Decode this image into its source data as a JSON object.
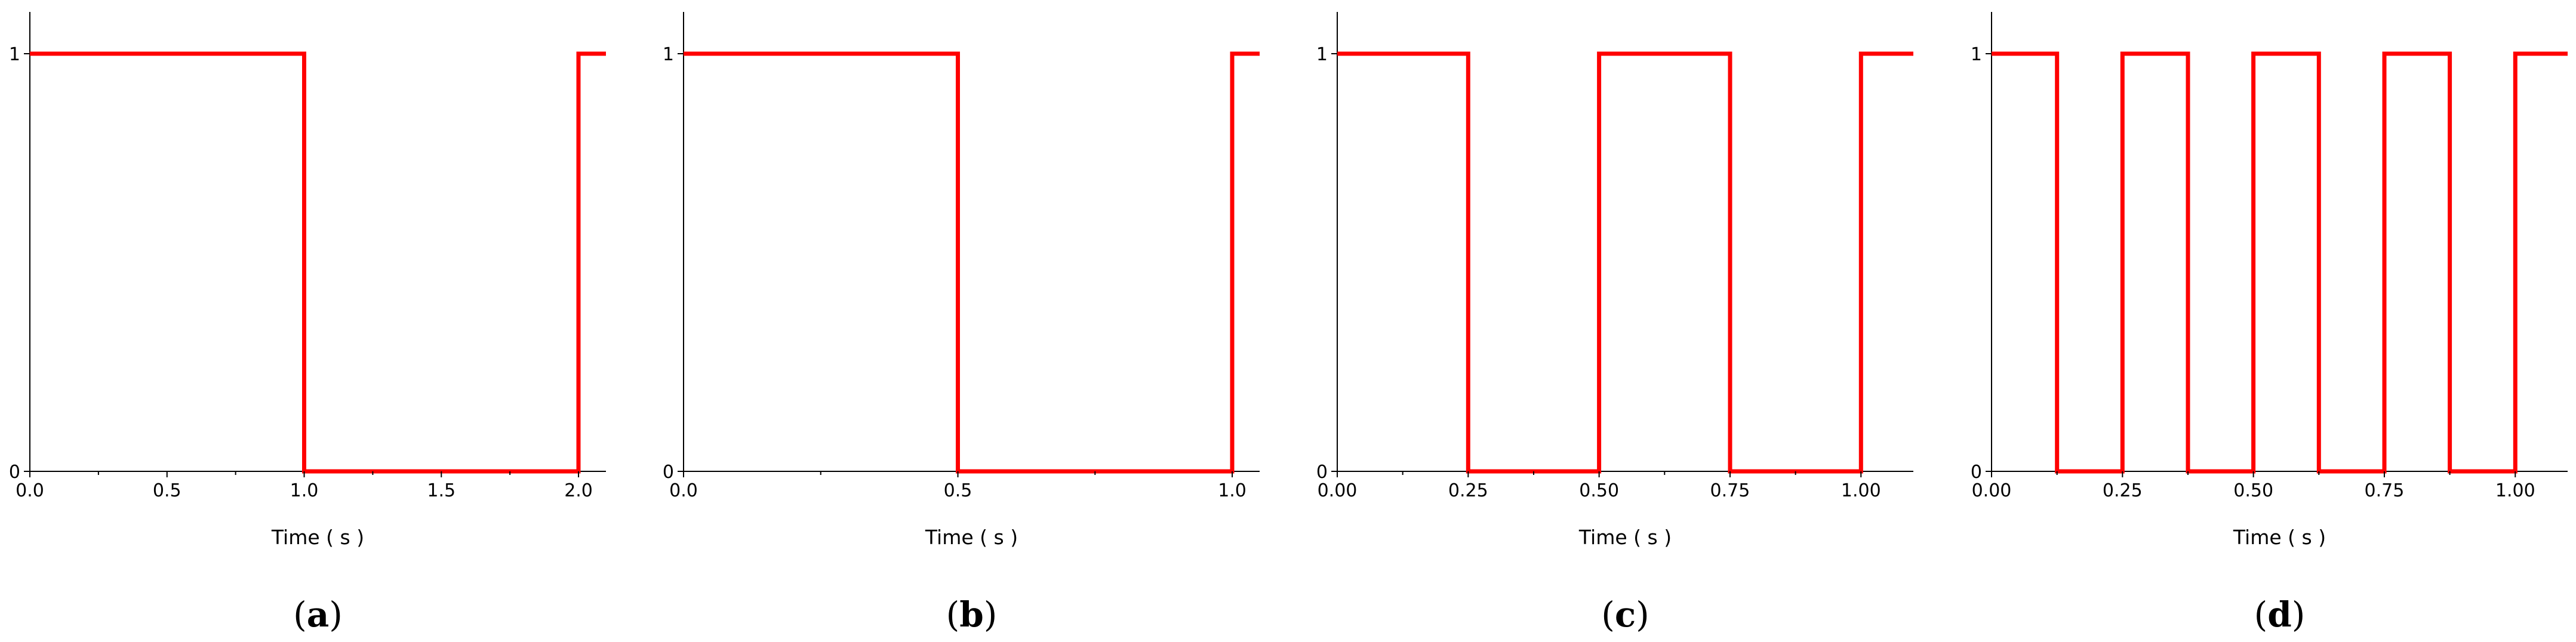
{
  "chart_data": [
    {
      "type": "line",
      "panel_label": "a",
      "xlabel": "Time ( s )",
      "ylabel": "",
      "xlim": [
        0,
        2.1
      ],
      "ylim": [
        0,
        1
      ],
      "x_ticks": [
        "0.0",
        "0.5",
        "1.0",
        "1.5",
        "2.0"
      ],
      "x_tick_values": [
        0,
        0.5,
        1.0,
        1.5,
        2.0
      ],
      "x_minor_tick_values": [
        0.25,
        0.75,
        1.25,
        1.75
      ],
      "y_ticks": [
        "0",
        "1"
      ],
      "y_tick_values": [
        0,
        1
      ],
      "grid": false,
      "series": [
        {
          "color": "#ff0000",
          "x": [
            0,
            1.0,
            1.0,
            2.0,
            2.0,
            2.1
          ],
          "y": [
            1,
            1,
            0,
            0,
            1,
            1
          ]
        }
      ]
    },
    {
      "type": "line",
      "panel_label": "b",
      "xlabel": "Time ( s )",
      "ylabel": "",
      "xlim": [
        0,
        1.05
      ],
      "ylim": [
        0,
        1
      ],
      "x_ticks": [
        "0.0",
        "0.5",
        "1.0"
      ],
      "x_tick_values": [
        0,
        0.5,
        1.0
      ],
      "x_minor_tick_values": [
        0.25,
        0.75
      ],
      "y_ticks": [
        "0",
        "1"
      ],
      "y_tick_values": [
        0,
        1
      ],
      "grid": false,
      "series": [
        {
          "color": "#ff0000",
          "x": [
            0,
            0.5,
            0.5,
            1.0,
            1.0,
            1.05
          ],
          "y": [
            1,
            1,
            0,
            0,
            1,
            1
          ]
        }
      ]
    },
    {
      "type": "line",
      "panel_label": "c",
      "xlabel": "Time ( s )",
      "ylabel": "",
      "xlim": [
        0,
        1.1
      ],
      "ylim": [
        0,
        1
      ],
      "x_ticks": [
        "0.00",
        "0.25",
        "0.50",
        "0.75",
        "1.00"
      ],
      "x_tick_values": [
        0,
        0.25,
        0.5,
        0.75,
        1.0
      ],
      "x_minor_tick_values": [
        0.125,
        0.375,
        0.625,
        0.875
      ],
      "y_ticks": [
        "0",
        "1"
      ],
      "y_tick_values": [
        0,
        1
      ],
      "grid": false,
      "series": [
        {
          "color": "#ff0000",
          "x": [
            0,
            0.25,
            0.25,
            0.5,
            0.5,
            0.75,
            0.75,
            1.0,
            1.0,
            1.1
          ],
          "y": [
            1,
            1,
            0,
            0,
            1,
            1,
            0,
            0,
            1,
            1
          ]
        }
      ]
    },
    {
      "type": "line",
      "panel_label": "d",
      "xlabel": "Time ( s )",
      "ylabel": "",
      "xlim": [
        0,
        1.1
      ],
      "ylim": [
        0,
        1
      ],
      "x_ticks": [
        "0.00",
        "0.25",
        "0.50",
        "0.75",
        "1.00"
      ],
      "x_tick_values": [
        0,
        0.25,
        0.5,
        0.75,
        1.0
      ],
      "x_minor_tick_values": [
        0.125,
        0.375,
        0.625,
        0.875
      ],
      "y_ticks": [
        "0",
        "1"
      ],
      "y_tick_values": [
        0,
        1
      ],
      "grid": false,
      "series": [
        {
          "color": "#ff0000",
          "x": [
            0,
            0.125,
            0.125,
            0.25,
            0.25,
            0.375,
            0.375,
            0.5,
            0.5,
            0.625,
            0.625,
            0.75,
            0.75,
            0.875,
            0.875,
            1.0,
            1.0,
            1.1
          ],
          "y": [
            1,
            1,
            0,
            0,
            1,
            1,
            0,
            0,
            1,
            1,
            0,
            0,
            1,
            1,
            0,
            0,
            1,
            1
          ]
        }
      ]
    }
  ]
}
